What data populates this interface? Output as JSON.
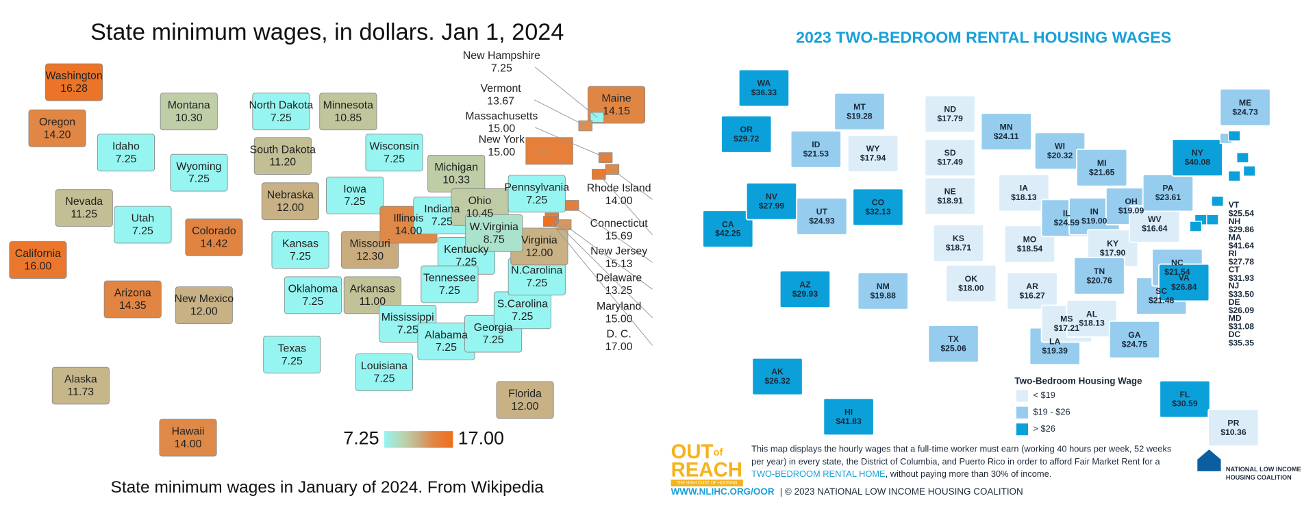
{
  "left": {
    "title": "State minimum wages, in dollars. Jan 1, 2024",
    "caption": "State minimum wages in January of 2024. From Wikipedia",
    "scale": {
      "min": "7.25",
      "max": "17.00"
    },
    "states": [
      {
        "name": "Washington",
        "wage": "16.28"
      },
      {
        "name": "Oregon",
        "wage": "14.20"
      },
      {
        "name": "California",
        "wage": "16.00"
      },
      {
        "name": "Idaho",
        "wage": "7.25"
      },
      {
        "name": "Nevada",
        "wage": "11.25"
      },
      {
        "name": "Utah",
        "wage": "7.25"
      },
      {
        "name": "Arizona",
        "wage": "14.35"
      },
      {
        "name": "Montana",
        "wage": "10.30"
      },
      {
        "name": "Wyoming",
        "wage": "7.25"
      },
      {
        "name": "Colorado",
        "wage": "14.42"
      },
      {
        "name": "New Mexico",
        "wage": "12.00"
      },
      {
        "name": "North Dakota",
        "wage": "7.25"
      },
      {
        "name": "South Dakota",
        "wage": "11.20"
      },
      {
        "name": "Nebraska",
        "wage": "12.00"
      },
      {
        "name": "Kansas",
        "wage": "7.25"
      },
      {
        "name": "Oklahoma",
        "wage": "7.25"
      },
      {
        "name": "Texas",
        "wage": "7.25"
      },
      {
        "name": "Minnesota",
        "wage": "10.85"
      },
      {
        "name": "Iowa",
        "wage": "7.25"
      },
      {
        "name": "Missouri",
        "wage": "12.30"
      },
      {
        "name": "Arkansas",
        "wage": "11.00"
      },
      {
        "name": "Louisiana",
        "wage": "7.25"
      },
      {
        "name": "Wisconsin",
        "wage": "7.25"
      },
      {
        "name": "Illinois",
        "wage": "14.00"
      },
      {
        "name": "Michigan",
        "wage": "10.33"
      },
      {
        "name": "Indiana",
        "wage": "7.25"
      },
      {
        "name": "Ohio",
        "wage": "10.45"
      },
      {
        "name": "Kentucky",
        "wage": "7.25"
      },
      {
        "name": "Tennessee",
        "wage": "7.25"
      },
      {
        "name": "Mississippi",
        "wage": "7.25"
      },
      {
        "name": "Alabama",
        "wage": "7.25"
      },
      {
        "name": "Georgia",
        "wage": "7.25"
      },
      {
        "name": "S.Carolina",
        "wage": "7.25"
      },
      {
        "name": "N.Carolina",
        "wage": "7.25"
      },
      {
        "name": "Virginia",
        "wage": "12.00"
      },
      {
        "name": "W.Virginia",
        "wage": "8.75"
      },
      {
        "name": "Pennsylvania",
        "wage": "7.25"
      },
      {
        "name": "Alaska",
        "wage": "11.73"
      },
      {
        "name": "Hawaii",
        "wage": "14.00"
      },
      {
        "name": "Florida",
        "wage": "12.00"
      },
      {
        "name": "Maine",
        "wage": "14.15"
      }
    ],
    "callouts": [
      {
        "name": "New Hampshire",
        "wage": "7.25"
      },
      {
        "name": "Vermont",
        "wage": "13.67"
      },
      {
        "name": "Massachusetts",
        "wage": "15.00"
      },
      {
        "name": "New York",
        "wage": "15.00"
      },
      {
        "name": "Rhode Island",
        "wage": "14.00"
      },
      {
        "name": "Connecticut",
        "wage": "15.69"
      },
      {
        "name": "New Jersey",
        "wage": "15.13"
      },
      {
        "name": "Delaware",
        "wage": "13.25"
      },
      {
        "name": "Maryland",
        "wage": "15.00"
      },
      {
        "name": "D. C.",
        "wage": "17.00"
      }
    ]
  },
  "right": {
    "title": "2023 TWO-BEDROOM RENTAL HOUSING WAGES",
    "legend": {
      "title": "Two-Bedroom Housing Wage",
      "thresholds": [
        19,
        26
      ],
      "items": [
        {
          "label": "< $19",
          "color": "#dcedf8"
        },
        {
          "label": "$19 - $26",
          "color": "#96cdee"
        },
        {
          "label": "> $26",
          "color": "#0ba0da"
        }
      ]
    },
    "states": [
      {
        "abbr": "WA",
        "wage": "$36.33"
      },
      {
        "abbr": "OR",
        "wage": "$29.72"
      },
      {
        "abbr": "CA",
        "wage": "$42.25"
      },
      {
        "abbr": "ID",
        "wage": "$21.53"
      },
      {
        "abbr": "NV",
        "wage": "$27.99"
      },
      {
        "abbr": "UT",
        "wage": "$24.93"
      },
      {
        "abbr": "AZ",
        "wage": "$29.93"
      },
      {
        "abbr": "MT",
        "wage": "$19.28"
      },
      {
        "abbr": "WY",
        "wage": "$17.94"
      },
      {
        "abbr": "CO",
        "wage": "$32.13"
      },
      {
        "abbr": "NM",
        "wage": "$19.88"
      },
      {
        "abbr": "ND",
        "wage": "$17.79"
      },
      {
        "abbr": "SD",
        "wage": "$17.49"
      },
      {
        "abbr": "NE",
        "wage": "$18.91"
      },
      {
        "abbr": "KS",
        "wage": "$18.71"
      },
      {
        "abbr": "OK",
        "wage": "$18.00"
      },
      {
        "abbr": "TX",
        "wage": "$25.06"
      },
      {
        "abbr": "MN",
        "wage": "$24.11"
      },
      {
        "abbr": "IA",
        "wage": "$18.13"
      },
      {
        "abbr": "MO",
        "wage": "$18.54"
      },
      {
        "abbr": "AR",
        "wage": "$16.27"
      },
      {
        "abbr": "LA",
        "wage": "$19.39"
      },
      {
        "abbr": "WI",
        "wage": "$20.32"
      },
      {
        "abbr": "IL",
        "wage": "$24.59"
      },
      {
        "abbr": "MI",
        "wage": "$21.65"
      },
      {
        "abbr": "IN",
        "wage": "$19.00"
      },
      {
        "abbr": "OH",
        "wage": "$19.09"
      },
      {
        "abbr": "KY",
        "wage": "$17.90"
      },
      {
        "abbr": "TN",
        "wage": "$20.76"
      },
      {
        "abbr": "MS",
        "wage": "$17.21"
      },
      {
        "abbr": "AL",
        "wage": "$18.13"
      },
      {
        "abbr": "GA",
        "wage": "$24.75"
      },
      {
        "abbr": "SC",
        "wage": "$21.48"
      },
      {
        "abbr": "NC",
        "wage": "$21.54"
      },
      {
        "abbr": "VA",
        "wage": "$26.84"
      },
      {
        "abbr": "WV",
        "wage": "$16.64"
      },
      {
        "abbr": "PA",
        "wage": "$23.61"
      },
      {
        "abbr": "NY",
        "wage": "$40.08"
      },
      {
        "abbr": "ME",
        "wage": "$24.73"
      },
      {
        "abbr": "FL",
        "wage": "$30.59"
      },
      {
        "abbr": "AK",
        "wage": "$26.32"
      },
      {
        "abbr": "HI",
        "wage": "$41.83"
      },
      {
        "abbr": "PR",
        "wage": "$10.36"
      }
    ],
    "side_list": [
      {
        "abbr": "VT",
        "wage": "$25.54"
      },
      {
        "abbr": "NH",
        "wage": "$29.86"
      },
      {
        "abbr": "MA",
        "wage": "$41.64"
      },
      {
        "abbr": "RI",
        "wage": "$27.78"
      },
      {
        "abbr": "CT",
        "wage": "$31.93"
      },
      {
        "abbr": "NJ",
        "wage": "$33.50"
      },
      {
        "abbr": "DE",
        "wage": "$26.09"
      },
      {
        "abbr": "MD",
        "wage": "$31.08"
      },
      {
        "abbr": "DC",
        "wage": "$35.35"
      }
    ],
    "footer": {
      "line1": "This map displays the hourly wages that a full-time worker must earn (working 40 hours per week, 52 weeks",
      "line2": "per year) in every state, the District of Columbia, and Puerto Rico in order to afford Fair Market Rent for a",
      "line3_link": "TWO-BEDROOM RENTAL HOME",
      "line3_rest": ", without paying more than 30% of income.",
      "url": "WWW.NLIHC.ORG/OOR",
      "copyright": "| © 2023 NATIONAL LOW INCOME HOUSING COALITION"
    },
    "logo": {
      "out": "OUT",
      "of": "of",
      "reach": "REACH",
      "tagline": "THE HIGH COST OF HOUSING"
    },
    "org": {
      "line1": "NATIONAL LOW INCOME",
      "line2": "HOUSING COALITION"
    }
  }
}
